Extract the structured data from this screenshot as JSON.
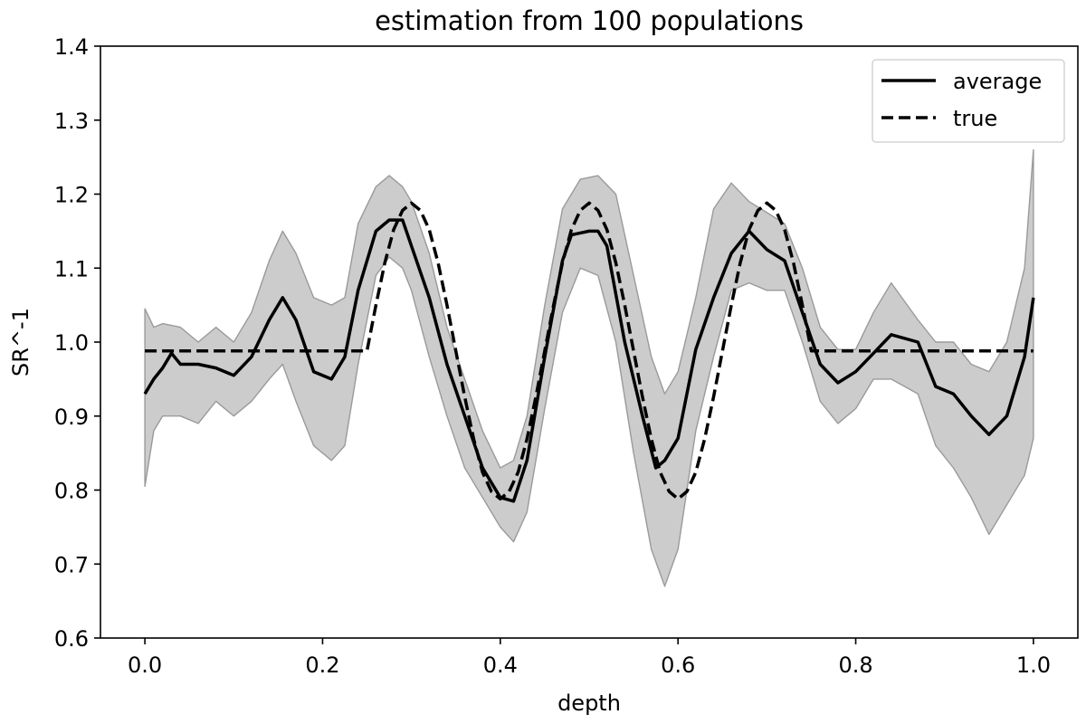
{
  "chart_data": {
    "type": "line",
    "title": "estimation from 100 populations",
    "xlabel": "depth",
    "ylabel": "SR^-1",
    "xlim": [
      -0.05,
      1.05
    ],
    "ylim": [
      0.6,
      1.4
    ],
    "xticks": [
      0.0,
      0.2,
      0.4,
      0.6,
      0.8,
      1.0
    ],
    "xtick_labels": [
      "0.0",
      "0.2",
      "0.4",
      "0.6",
      "0.8",
      "1.0"
    ],
    "yticks": [
      0.6,
      0.7,
      0.8,
      0.9,
      1.0,
      1.1,
      1.2,
      1.3,
      1.4
    ],
    "ytick_labels": [
      "0.6",
      "0.7",
      "0.8",
      "0.9",
      "1.0",
      "1.1",
      "1.2",
      "1.3",
      "1.4"
    ],
    "grid": false,
    "legend_position": "top-right",
    "series": [
      {
        "name": "average",
        "style": "solid",
        "color": "#000000",
        "x": [
          0.0,
          0.01,
          0.02,
          0.03,
          0.04,
          0.06,
          0.08,
          0.1,
          0.12,
          0.14,
          0.155,
          0.17,
          0.19,
          0.21,
          0.225,
          0.24,
          0.26,
          0.275,
          0.29,
          0.3,
          0.32,
          0.34,
          0.36,
          0.38,
          0.4,
          0.415,
          0.43,
          0.45,
          0.47,
          0.48,
          0.5,
          0.51,
          0.52,
          0.54,
          0.56,
          0.575,
          0.585,
          0.6,
          0.62,
          0.64,
          0.66,
          0.68,
          0.7,
          0.72,
          0.74,
          0.76,
          0.78,
          0.8,
          0.82,
          0.84,
          0.87,
          0.89,
          0.91,
          0.93,
          0.95,
          0.97,
          0.99,
          1.0
        ],
        "y": [
          0.93,
          0.95,
          0.965,
          0.985,
          0.97,
          0.97,
          0.965,
          0.955,
          0.98,
          1.03,
          1.06,
          1.03,
          0.96,
          0.95,
          0.98,
          1.07,
          1.15,
          1.165,
          1.165,
          1.13,
          1.06,
          0.97,
          0.9,
          0.83,
          0.79,
          0.785,
          0.84,
          0.98,
          1.11,
          1.145,
          1.15,
          1.15,
          1.13,
          1.0,
          0.9,
          0.83,
          0.84,
          0.87,
          0.99,
          1.06,
          1.12,
          1.15,
          1.125,
          1.11,
          1.04,
          0.97,
          0.945,
          0.96,
          0.985,
          1.01,
          1.0,
          0.94,
          0.93,
          0.9,
          0.875,
          0.9,
          0.98,
          1.06
        ]
      },
      {
        "name": "true",
        "style": "dashed",
        "color": "#000000",
        "x": [
          0.0,
          0.25,
          0.26,
          0.27,
          0.28,
          0.29,
          0.3,
          0.31,
          0.32,
          0.33,
          0.34,
          0.35,
          0.36,
          0.37,
          0.38,
          0.39,
          0.4,
          0.41,
          0.42,
          0.43,
          0.44,
          0.45,
          0.46,
          0.47,
          0.48,
          0.49,
          0.5,
          0.51,
          0.52,
          0.53,
          0.54,
          0.55,
          0.56,
          0.57,
          0.58,
          0.59,
          0.6,
          0.61,
          0.62,
          0.63,
          0.64,
          0.65,
          0.66,
          0.67,
          0.68,
          0.69,
          0.7,
          0.71,
          0.72,
          0.73,
          0.74,
          0.75,
          1.0
        ],
        "y": [
          0.988,
          0.988,
          1.05,
          1.107,
          1.152,
          1.178,
          1.188,
          1.178,
          1.152,
          1.107,
          1.05,
          0.988,
          0.926,
          0.869,
          0.824,
          0.798,
          0.788,
          0.798,
          0.824,
          0.869,
          0.926,
          0.988,
          1.05,
          1.107,
          1.152,
          1.178,
          1.188,
          1.178,
          1.152,
          1.107,
          1.05,
          0.988,
          0.926,
          0.869,
          0.824,
          0.798,
          0.788,
          0.798,
          0.824,
          0.869,
          0.926,
          0.988,
          1.05,
          1.107,
          1.152,
          1.178,
          1.188,
          1.178,
          1.152,
          1.107,
          1.05,
          0.988,
          0.988
        ]
      }
    ],
    "band": {
      "color": "#cccccc",
      "edge_color": "#9a9a9a",
      "x": [
        0.0,
        0.01,
        0.02,
        0.04,
        0.06,
        0.08,
        0.1,
        0.12,
        0.14,
        0.155,
        0.17,
        0.19,
        0.21,
        0.225,
        0.24,
        0.26,
        0.275,
        0.29,
        0.3,
        0.32,
        0.34,
        0.36,
        0.38,
        0.4,
        0.415,
        0.43,
        0.45,
        0.47,
        0.49,
        0.51,
        0.53,
        0.55,
        0.57,
        0.585,
        0.6,
        0.62,
        0.64,
        0.66,
        0.68,
        0.7,
        0.72,
        0.74,
        0.76,
        0.78,
        0.8,
        0.82,
        0.84,
        0.87,
        0.89,
        0.91,
        0.93,
        0.95,
        0.97,
        0.99,
        1.0
      ],
      "upper": [
        1.045,
        1.02,
        1.025,
        1.02,
        1.0,
        1.02,
        1.0,
        1.04,
        1.11,
        1.15,
        1.12,
        1.06,
        1.05,
        1.06,
        1.16,
        1.21,
        1.225,
        1.21,
        1.19,
        1.12,
        1.02,
        0.95,
        0.88,
        0.83,
        0.84,
        0.9,
        1.05,
        1.18,
        1.22,
        1.225,
        1.2,
        1.09,
        0.98,
        0.93,
        0.96,
        1.06,
        1.18,
        1.215,
        1.19,
        1.175,
        1.16,
        1.1,
        1.02,
        0.99,
        0.99,
        1.04,
        1.08,
        1.03,
        1.0,
        1.0,
        0.97,
        0.96,
        1.0,
        1.1,
        1.26
      ],
      "lower": [
        0.805,
        0.88,
        0.9,
        0.9,
        0.89,
        0.92,
        0.9,
        0.92,
        0.95,
        0.97,
        0.92,
        0.86,
        0.84,
        0.86,
        0.97,
        1.09,
        1.115,
        1.1,
        1.07,
        0.98,
        0.9,
        0.83,
        0.79,
        0.75,
        0.73,
        0.77,
        0.91,
        1.04,
        1.1,
        1.09,
        1.0,
        0.85,
        0.72,
        0.67,
        0.72,
        0.88,
        0.98,
        1.07,
        1.08,
        1.07,
        1.07,
        1.0,
        0.92,
        0.89,
        0.91,
        0.95,
        0.95,
        0.93,
        0.86,
        0.83,
        0.79,
        0.74,
        0.78,
        0.82,
        0.87
      ]
    }
  }
}
